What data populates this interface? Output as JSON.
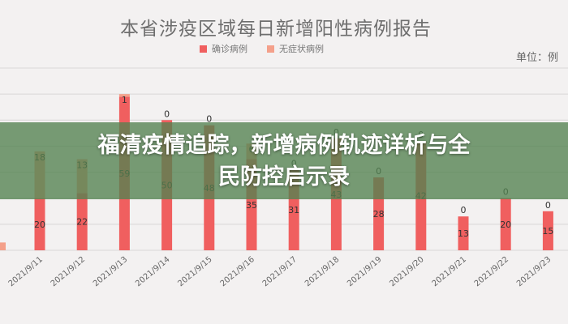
{
  "chart_data": {
    "type": "bar",
    "title": "本省涉疫区域每日新增阳性病例报告",
    "unit_label": "单位：例",
    "categories": [
      "2021/9/11",
      "2021/9/12",
      "2021/9/13",
      "2021/9/14",
      "2021/9/15",
      "2021/9/16",
      "2021/9/17",
      "2021/9/18",
      "2021/9/19",
      "2021/9/20",
      "2021/9/21",
      "2021/9/22",
      "2021/9/23"
    ],
    "series": [
      {
        "name": "确诊病例",
        "color": "#f05f5f",
        "values": [
          20,
          22,
          59,
          50,
          48,
          35,
          31,
          43,
          28,
          42,
          13,
          20,
          15
        ]
      },
      {
        "name": "无症状病例",
        "color": "#f4a08a",
        "values": [
          18,
          13,
          1,
          0,
          0,
          6,
          0,
          0,
          0,
          0,
          0,
          0,
          0
        ]
      }
    ],
    "ylim": [
      0,
      70
    ],
    "grid": true,
    "legend_position": "top"
  },
  "overlay": {
    "headline_line1": "福清疫情追踪，新增病例轨迹详析与全",
    "headline_line2": "民防控启示录",
    "color": "#528250"
  }
}
